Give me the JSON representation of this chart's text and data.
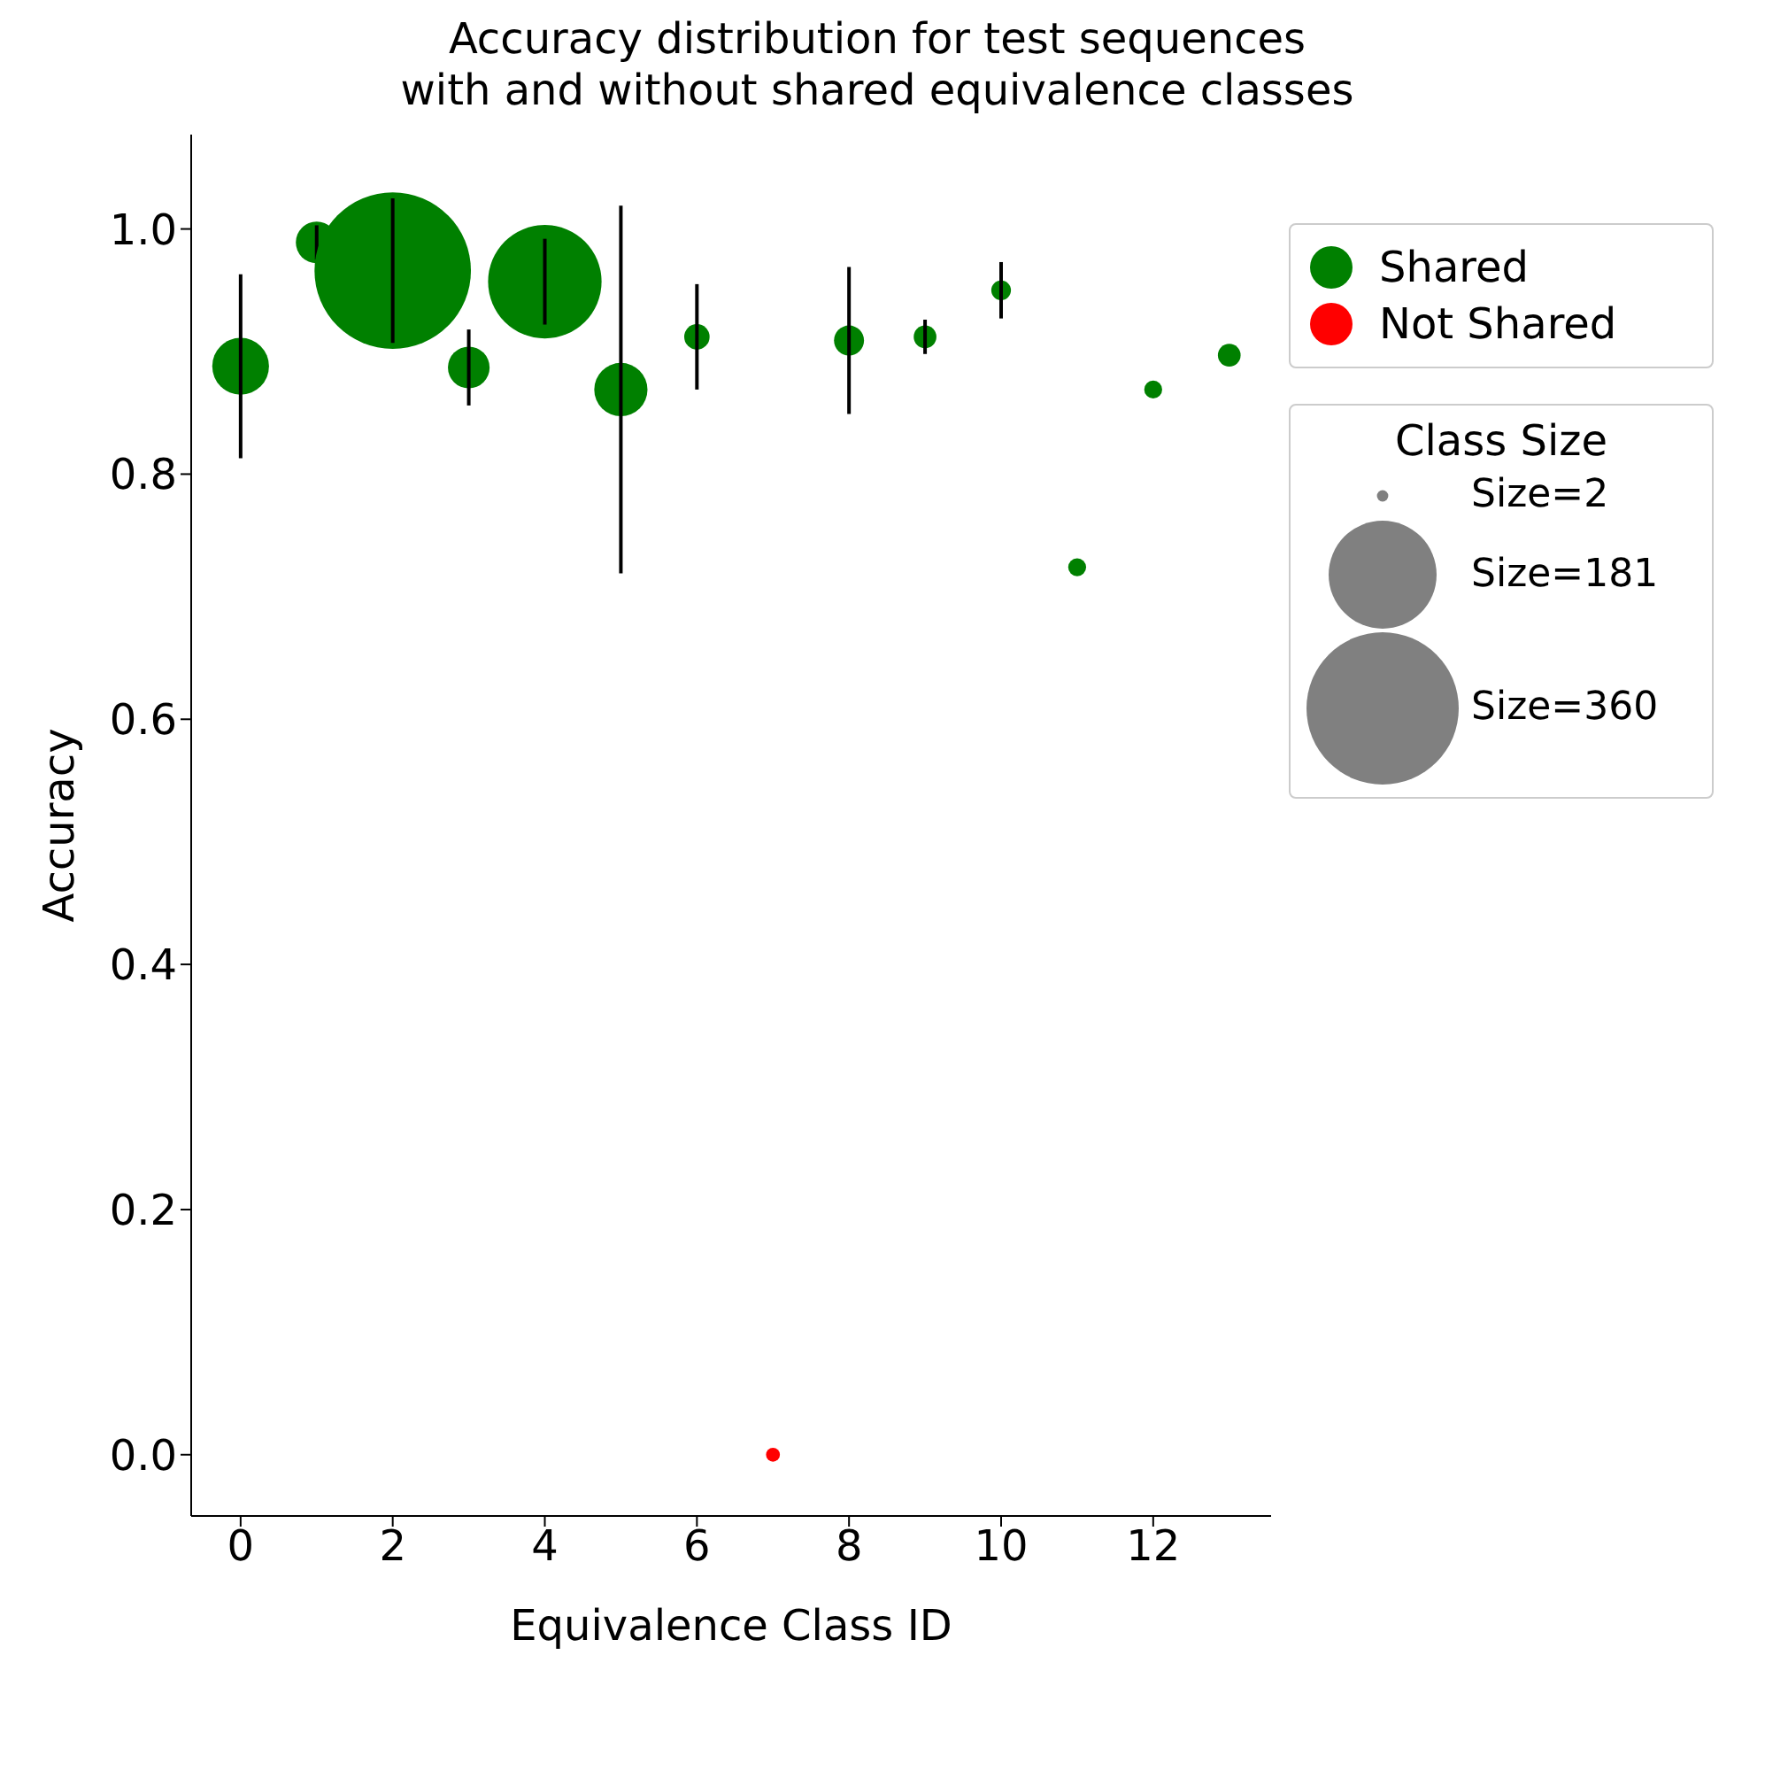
{
  "chart_data": {
    "type": "bubble",
    "title": "Accuracy distribution for test sequences\nwith and without shared equivalence classes",
    "xlabel": "Equivalence Class ID",
    "ylabel": "Accuracy",
    "legend_title": "Class Size",
    "size_legend": [
      {
        "value": 2,
        "label": "Size=2"
      },
      {
        "value": 181,
        "label": "Size=181"
      },
      {
        "value": 360,
        "label": "Size=360"
      }
    ],
    "marker": "circle",
    "legend": "right",
    "grid": false,
    "xlim": [
      -0.65,
      13.55
    ],
    "xticks": [
      0,
      2,
      4,
      6,
      8,
      10,
      12
    ],
    "ylim": [
      -0.05,
      1.077
    ],
    "yticks": [
      {
        "value": 0,
        "label": "0.0"
      },
      0.2,
      0.4,
      0.6,
      0.8,
      {
        "value": 1,
        "label": "1.0"
      }
    ],
    "series": [
      {
        "name": "Shared",
        "color": "#008000",
        "x": [
          0,
          1,
          2,
          3,
          4,
          5,
          6,
          8,
          9,
          10,
          11,
          12,
          13
        ],
        "values": [
          0.888,
          0.989,
          0.966,
          0.887,
          0.957,
          0.869,
          0.912,
          0.909,
          0.912,
          0.95,
          0.724,
          0.869,
          0.897
        ],
        "sizes": [
          50,
          27,
          380,
          27,
          200,
          44,
          10,
          14,
          8,
          6,
          5,
          5,
          8
        ],
        "errors": [
          0.075,
          0.014,
          0.059,
          0.031,
          0.035,
          0.15,
          0.043,
          0.06,
          0.014,
          0.023,
          null,
          null,
          null
        ]
      },
      {
        "name": "Not Shared",
        "color": "#ff0000",
        "x": [
          7
        ],
        "values": [
          0
        ],
        "sizes": [
          3
        ]
      }
    ]
  }
}
